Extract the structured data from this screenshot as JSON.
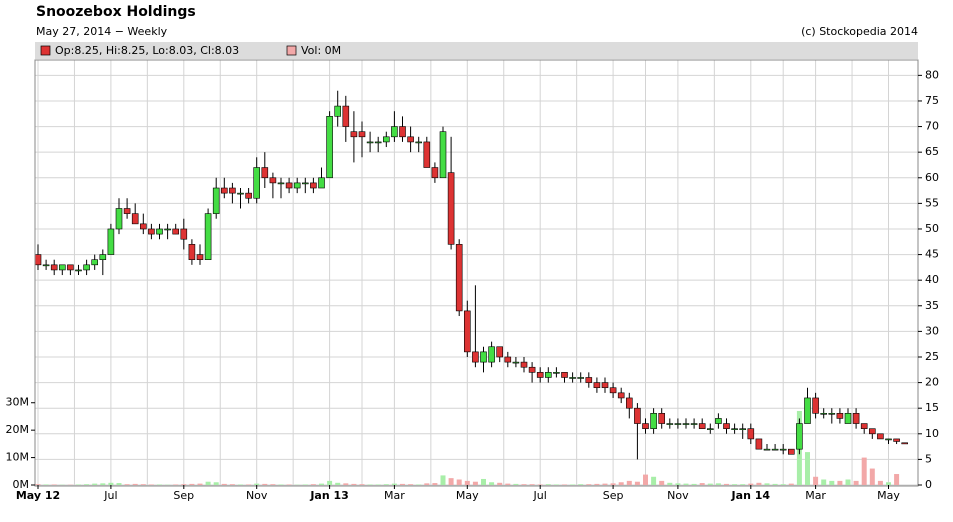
{
  "chart_data": {
    "type": "candlestick",
    "title": "Snoozebox Holdings",
    "subtitle": "May 27, 2014 − Weekly",
    "credit": "(c) Stockopedia 2014",
    "legend": {
      "price": "Op:8.25, Hi:8.25, Lo:8.03, Cl:8.03",
      "volume": "Vol: 0M"
    },
    "categories": [
      "May 12",
      null,
      null,
      null,
      null,
      null,
      null,
      null,
      null,
      "Jul",
      null,
      null,
      null,
      null,
      null,
      null,
      null,
      null,
      "Sep",
      null,
      null,
      null,
      null,
      null,
      null,
      null,
      null,
      "Nov",
      null,
      null,
      null,
      null,
      null,
      null,
      null,
      null,
      "Jan 13",
      null,
      null,
      null,
      null,
      null,
      null,
      null,
      "Mar",
      null,
      null,
      null,
      null,
      null,
      null,
      null,
      null,
      "May",
      null,
      null,
      null,
      null,
      null,
      null,
      null,
      null,
      "Jul",
      null,
      null,
      null,
      null,
      null,
      null,
      null,
      null,
      "Sep",
      null,
      null,
      null,
      null,
      null,
      null,
      null,
      "Nov",
      null,
      null,
      null,
      null,
      null,
      null,
      null,
      null,
      "Jan 14",
      null,
      null,
      null,
      null,
      null,
      null,
      null,
      "Mar",
      null,
      null,
      null,
      null,
      null,
      null,
      null,
      null,
      "May",
      null,
      null
    ],
    "open": [
      45,
      43,
      43,
      42,
      43,
      42,
      42,
      43,
      44,
      45,
      50,
      54,
      53,
      51,
      50,
      49,
      50,
      50,
      50,
      47,
      45,
      44,
      53,
      58,
      58,
      57,
      57,
      56,
      62,
      60,
      59,
      59,
      58,
      59,
      59,
      58,
      60,
      72,
      74,
      69,
      69,
      67,
      67,
      67,
      68,
      70,
      68,
      67,
      67,
      62,
      60,
      61,
      47,
      34,
      26,
      24,
      24,
      27,
      25,
      24,
      24,
      23,
      22,
      21,
      22,
      22,
      21,
      21,
      21,
      20,
      20,
      19,
      18,
      17,
      15,
      12,
      11,
      14,
      12,
      12,
      12,
      12,
      12,
      11,
      12,
      12,
      11,
      11,
      11,
      9,
      7,
      7,
      7,
      7,
      7,
      12,
      17,
      14,
      14,
      14,
      12,
      14,
      12,
      11,
      10,
      9,
      9,
      8.25
    ],
    "high": [
      47,
      44,
      44,
      43,
      43,
      43,
      44,
      45,
      46,
      51,
      56,
      56,
      55,
      53,
      51,
      51,
      51,
      51,
      52,
      48,
      47,
      54,
      60,
      60,
      59,
      58,
      58,
      64,
      65,
      61,
      60,
      60,
      60,
      60,
      60,
      62,
      73,
      77,
      76,
      73,
      71,
      69,
      68,
      69,
      73,
      72,
      70,
      68,
      68,
      63,
      70,
      68,
      48,
      36,
      39,
      27,
      28,
      27,
      26,
      25,
      25,
      24,
      23,
      23,
      23,
      22,
      22,
      22,
      22,
      21,
      21,
      20,
      19,
      18,
      16,
      13,
      15,
      15,
      13,
      13,
      13,
      13,
      13,
      12,
      14,
      13,
      12,
      12,
      12,
      9,
      8,
      8,
      8,
      7,
      13,
      19,
      18,
      15,
      15,
      15,
      15,
      15,
      12,
      11,
      10,
      9,
      9,
      8.25
    ],
    "low": [
      42,
      42,
      41,
      41,
      41,
      41,
      41,
      42,
      41,
      45,
      49,
      52,
      51,
      49,
      48,
      48,
      48,
      49,
      46,
      43,
      43,
      44,
      52,
      56,
      55,
      54,
      55,
      55,
      58,
      56,
      56,
      57,
      57,
      57,
      57,
      58,
      60,
      70,
      67,
      63,
      64,
      65,
      65,
      66,
      67,
      67,
      65,
      65,
      62,
      59,
      60,
      46,
      33,
      25,
      23,
      22,
      23,
      24,
      23,
      23,
      22,
      20,
      20,
      20,
      21,
      20,
      20,
      20,
      19,
      18,
      18,
      17,
      16,
      13,
      5,
      10,
      10,
      11,
      11,
      11,
      11,
      11,
      11,
      10,
      11,
      10,
      10,
      9,
      8,
      7,
      7,
      7,
      6,
      6,
      6,
      12,
      13,
      13,
      12,
      12,
      12,
      11,
      10,
      9,
      9,
      8,
      8,
      8.03
    ],
    "close": [
      43,
      43,
      42,
      43,
      42,
      42,
      43,
      44,
      45,
      50,
      54,
      53,
      51,
      50,
      49,
      50,
      50,
      49,
      48,
      44,
      44,
      53,
      58,
      57,
      57,
      57,
      56,
      62,
      60,
      59,
      59,
      58,
      59,
      59,
      58,
      60,
      72,
      74,
      70,
      68,
      68,
      67,
      67,
      68,
      70,
      68,
      67,
      67,
      62,
      60,
      69,
      47,
      34,
      26,
      24,
      26,
      27,
      25,
      24,
      24,
      23,
      22,
      21,
      22,
      22,
      21,
      21,
      21,
      20,
      19,
      19,
      18,
      17,
      15,
      12,
      11,
      14,
      12,
      12,
      12,
      12,
      12,
      11,
      11,
      13,
      11,
      11,
      11,
      9,
      7,
      7,
      7,
      7,
      6,
      12,
      17,
      14,
      14,
      14,
      13,
      14,
      12,
      11,
      10,
      9,
      9,
      8.5,
      8.03
    ],
    "volume": [
      300000,
      200000,
      200000,
      100000,
      100000,
      200000,
      300000,
      500000,
      600000,
      800000,
      700000,
      300000,
      400000,
      300000,
      200000,
      200000,
      100000,
      200000,
      300000,
      400000,
      500000,
      1200000,
      1000000,
      400000,
      300000,
      200000,
      200000,
      500000,
      400000,
      300000,
      200000,
      200000,
      100000,
      200000,
      300000,
      500000,
      1500000,
      800000,
      600000,
      400000,
      300000,
      200000,
      200000,
      300000,
      500000,
      400000,
      300000,
      200000,
      600000,
      700000,
      3500000,
      2500000,
      2000000,
      1500000,
      1200000,
      2200000,
      1000000,
      800000,
      500000,
      400000,
      300000,
      300000,
      200000,
      300000,
      200000,
      200000,
      200000,
      300000,
      300000,
      400000,
      500000,
      600000,
      1000000,
      1500000,
      1200000,
      3800000,
      3000000,
      1500000,
      800000,
      600000,
      500000,
      400000,
      700000,
      500000,
      600000,
      400000,
      300000,
      300000,
      500000,
      800000,
      600000,
      400000,
      300000,
      500000,
      27000000,
      12000000,
      3000000,
      2000000,
      1500000,
      1500000,
      2000000,
      1500000,
      10000000,
      6000000,
      1500000,
      1000000,
      4000000,
      0
    ],
    "up_color": "#44dd44",
    "down_color": "#dd3333",
    "volume_up_color": "#a8eea8",
    "volume_down_color": "#f2a8a8",
    "ylim": [
      0,
      83
    ],
    "yticks": [
      0,
      5,
      10,
      15,
      20,
      25,
      30,
      35,
      40,
      45,
      50,
      55,
      60,
      65,
      70,
      75,
      80
    ],
    "y2lim": [
      0,
      155000000
    ],
    "y2ticks": [
      {
        "value": 0,
        "label": "0M"
      },
      {
        "value": 10000000,
        "label": "10M"
      },
      {
        "value": 20000000,
        "label": "20M"
      },
      {
        "value": 30000000,
        "label": "30M"
      }
    ],
    "grid": true
  }
}
